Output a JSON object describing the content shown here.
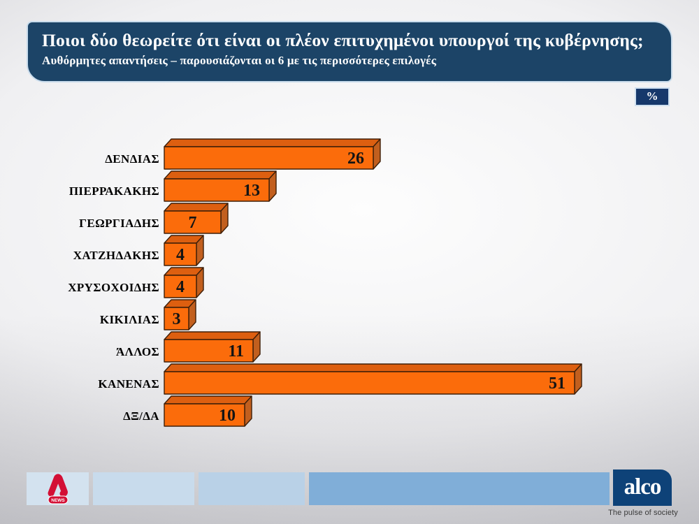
{
  "header": {
    "title": "Ποιοι δύο θεωρείτε ότι είναι οι πλέον επιτυχημένοι υπουργοί της κυβέρνησης;",
    "subtitle": "Αυθόρμητες απαντήσεις – παρουσιάζονται οι 6 με τις περισσότερες επιλογές",
    "unit_badge": "%"
  },
  "chart_data": {
    "type": "bar",
    "orientation": "horizontal",
    "style": "3d",
    "title": "Ποιοι δύο θεωρείτε ότι είναι οι πλέον επιτυχημένοι υπουργοί της κυβέρνησης;",
    "unit": "%",
    "categories": [
      "ΔΕΝΔΙΑΣ",
      "ΠΙΕΡΡΑΚΑΚΗΣ",
      "ΓΕΩΡΓΙΑΔΗΣ",
      "ΧΑΤΖΗΔΑΚΗΣ",
      "ΧΡΥΣΟΧΟΙΔΗΣ",
      "ΚΙΚΙΛΙΑΣ",
      "ΆΛΛΟΣ",
      "ΚΑΝΕΝΑΣ",
      "ΔΞ/ΔΑ"
    ],
    "values": [
      26,
      13,
      7,
      4,
      4,
      3,
      11,
      51,
      10
    ],
    "value_labels": [
      "26",
      "13",
      "7",
      "4",
      "4",
      "3",
      "11",
      "51",
      "10"
    ],
    "xlim": [
      0,
      55
    ],
    "grid": false,
    "legend": false,
    "data_labels": "inside-end"
  },
  "colors": {
    "title_bg": "#1C4467",
    "badge_bg": "#16386B",
    "bar_front": "#FB6C0B",
    "bar_top": "#DD5F10",
    "bar_side": "#C25F1E",
    "bar_outline": "#3F1F08",
    "label_text": "#000000",
    "value_text": "#141414",
    "footer_boxes": [
      "#D3E2EF",
      "#C8DBEC",
      "#B9D1E7",
      "#80AED8"
    ],
    "alco_bg": "#0E4278",
    "alpha_red": "#D30F35"
  },
  "footer": {
    "alpha": {
      "news_label": "NEWS"
    },
    "alco": {
      "logo_text": "alco",
      "tagline": "The pulse of society"
    }
  }
}
